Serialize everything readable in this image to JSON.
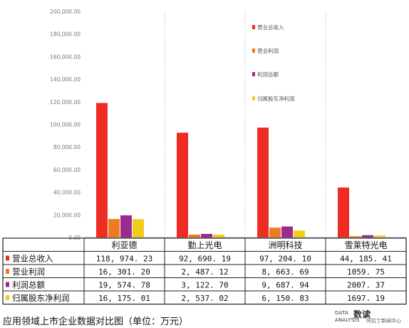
{
  "chart_data": {
    "type": "bar",
    "title": "应用领域上市企业数据对比图（单位：万元）",
    "categories": [
      "利亚德",
      "勤上光电",
      "洲明科技",
      "雪莱特光电"
    ],
    "yticks": [
      "0.00",
      "20,000.00",
      "40,000.00",
      "60,000.00",
      "80,000.00",
      "100,000.00",
      "120,000.00",
      "140,000.00",
      "160,000.00",
      "180,000.00",
      "200,000.00"
    ],
    "ylim": [
      0,
      200000
    ],
    "grid": false,
    "legend_position": "top-right",
    "series": [
      {
        "name": "营业总收入",
        "color": "#ee2c24",
        "values": [
          118974.23,
          92690.19,
          97204.1,
          44185.41
        ],
        "labels": [
          "118, 974. 23",
          "92, 690. 19",
          "97, 204. 10",
          "44, 185. 41"
        ]
      },
      {
        "name": "营业利润",
        "color": "#f07a22",
        "values": [
          16301.2,
          2487.12,
          8663.69,
          1059.75
        ],
        "labels": [
          "16, 301. 20",
          "2, 487. 12",
          "8, 663. 69",
          "1059. 75"
        ]
      },
      {
        "name": "利润总额",
        "color": "#9c2a8e",
        "values": [
          19574.78,
          3122.7,
          9687.94,
          2007.37
        ],
        "labels": [
          "19, 574. 78",
          "3, 122. 70",
          "9, 687. 94",
          "2007. 37"
        ]
      },
      {
        "name": "归属股东净利润",
        "color": "#f2cc1c",
        "values": [
          16175.01,
          2537.02,
          6150.83,
          1697.19
        ],
        "labels": [
          "16, 175. 01",
          "2, 537. 02",
          "6, 150. 83",
          "1697. 19"
        ]
      }
    ]
  },
  "footer": {
    "title": "应用领域上市企业数据对比图（单位：万元）",
    "brand_data": "DATA",
    "brand_cn": "数读",
    "brand_analysis": "ANALYSIS",
    "brand_source": "阿拉丁新闻中心"
  }
}
